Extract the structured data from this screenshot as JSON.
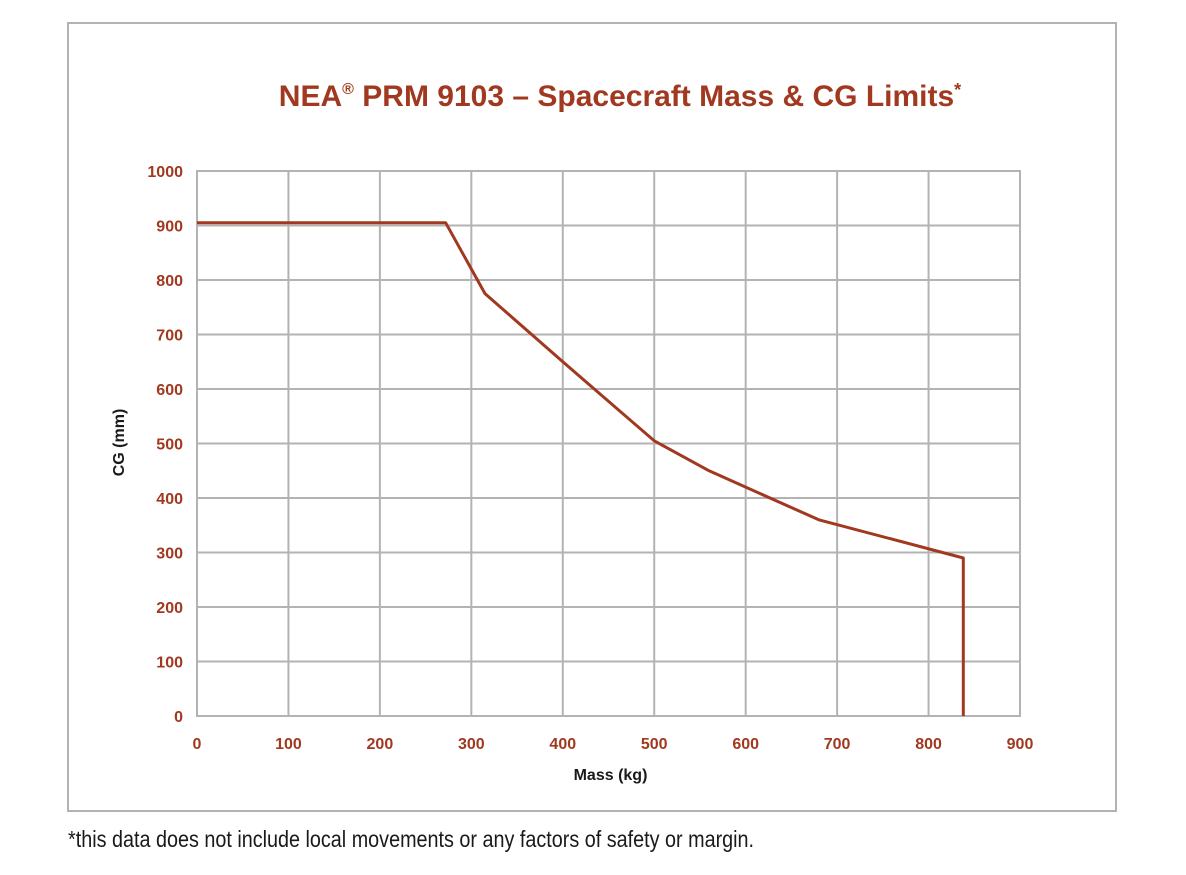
{
  "chart_data": {
    "type": "line",
    "title": "NEA",
    "title_reg": "®",
    "title_rest": " PRM 9103 – Spacecraft Mass & CG Limits",
    "title_asterisk": "*",
    "xlabel": "Mass (kg)",
    "ylabel": "CG (mm)",
    "xlim": [
      0,
      900
    ],
    "ylim": [
      0,
      1000
    ],
    "xticks": [
      0,
      100,
      200,
      300,
      400,
      500,
      600,
      700,
      800,
      900
    ],
    "yticks": [
      0,
      100,
      200,
      300,
      400,
      500,
      600,
      700,
      800,
      900,
      1000
    ],
    "grid": true,
    "series": [
      {
        "color": "#a0391f",
        "x": [
          0,
          272,
          315,
          400,
          500,
          560,
          680,
          838,
          838
        ],
        "y": [
          905,
          905,
          775,
          650,
          505,
          450,
          360,
          290,
          0
        ]
      }
    ]
  },
  "footnote": "*this data does not include local movements or any factors of safety or margin.",
  "colors": {
    "accent": "#a0391f",
    "grid": "#b3b3b3",
    "frame": "#b3b3b3"
  }
}
